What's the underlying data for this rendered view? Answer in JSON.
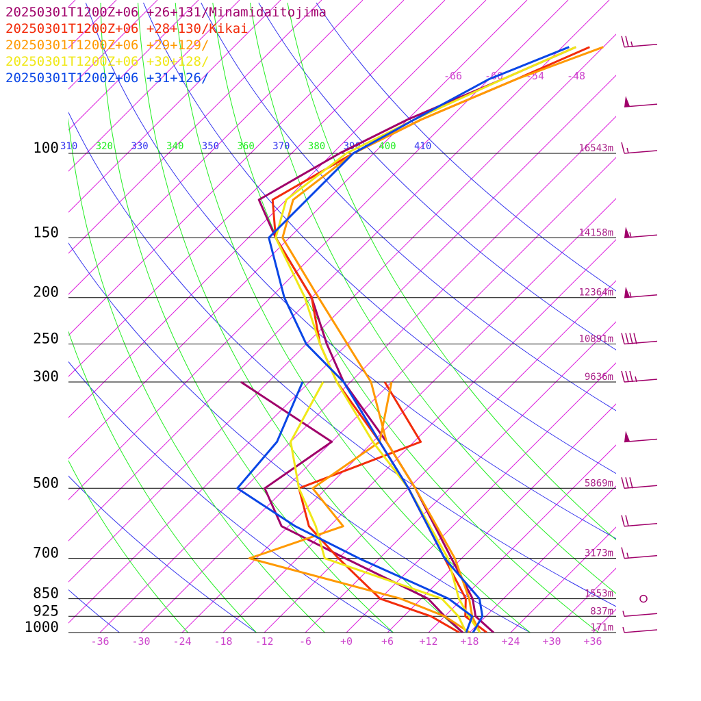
{
  "chart_data": {
    "type": "skew-t sounding",
    "legend": [
      {
        "label": "20250301T1200Z+06 +26+131/Minamidaitojima",
        "color": "#a0006a"
      },
      {
        "label": "20250301T1200Z+06 +28+130/Kikai",
        "color": "#f22c0b"
      },
      {
        "label": "20250301T1200Z+06 +29+129/",
        "color": "#ff9900"
      },
      {
        "label": "20250301T1200Z+06 +30+128/",
        "color": "#f0e818"
      },
      {
        "label": "20250301T1200Z+06 +31+126/",
        "color": "#0a46e6"
      }
    ],
    "pressure_levels": [
      {
        "label": "100",
        "p": 100,
        "height": "16543m"
      },
      {
        "label": "150",
        "p": 150,
        "height": "14158m"
      },
      {
        "label": "200",
        "p": 200,
        "height": "12364m"
      },
      {
        "label": "250",
        "p": 250,
        "height": "10891m"
      },
      {
        "label": "300",
        "p": 300,
        "height": "9636m"
      },
      {
        "label": "500",
        "p": 500,
        "height": "5869m"
      },
      {
        "label": "700",
        "p": 700,
        "height": "3173m"
      },
      {
        "label": "850",
        "p": 850,
        "height": "1553m"
      },
      {
        "label": "925",
        "p": 925,
        "height": "837m"
      },
      {
        "label": "1000",
        "p": 1000,
        "height": "171m"
      }
    ],
    "temperature_ticks": [
      "-36",
      "-30",
      "-24",
      "-18",
      "-12",
      "-6",
      "+0",
      "+6",
      "+12",
      "+18",
      "+24",
      "+30",
      "+36"
    ],
    "temperature_values": [
      -36,
      -30,
      -24,
      -18,
      -12,
      -6,
      0,
      6,
      12,
      18,
      24,
      30,
      36
    ],
    "theta_labels": [
      "310",
      "320",
      "330",
      "340",
      "350",
      "360",
      "370",
      "380",
      "390",
      "400",
      "410"
    ],
    "mixing_ratio_labels": [
      "-66",
      "-60",
      "-54",
      "-48"
    ],
    "series": [
      {
        "name": "20250301T1200Z+06 +26+131/Minamidaitojima",
        "color": "#a0006a",
        "temperature": [
          [
            1000,
            21.5
          ],
          [
            925,
            16.5
          ],
          [
            850,
            13.5
          ],
          [
            700,
            4.5
          ],
          [
            500,
            -11
          ],
          [
            400,
            -22
          ],
          [
            300,
            -37
          ],
          [
            250,
            -45
          ],
          [
            200,
            -54
          ],
          [
            150,
            -68
          ],
          [
            125,
            -76
          ],
          [
            100,
            -71
          ],
          [
            85,
            -66
          ],
          [
            70,
            -58
          ],
          [
            60,
            -52
          ]
        ],
        "dewpoint": [
          [
            1000,
            17
          ],
          [
            925,
            12
          ],
          [
            850,
            7
          ],
          [
            700,
            -11
          ],
          [
            600,
            -25
          ],
          [
            500,
            -33
          ],
          [
            400,
            -30
          ],
          [
            300,
            -52
          ]
        ]
      },
      {
        "name": "20250301T1200Z+06 +28+130/Kikai",
        "color": "#f22c0b",
        "temperature": [
          [
            1000,
            20.5
          ],
          [
            925,
            15
          ],
          [
            850,
            12.5
          ],
          [
            700,
            3.5
          ],
          [
            500,
            -12
          ],
          [
            400,
            -23
          ],
          [
            300,
            -38
          ],
          [
            250,
            -46
          ],
          [
            200,
            -54
          ],
          [
            150,
            -68
          ],
          [
            125,
            -74
          ],
          [
            100,
            -69
          ],
          [
            85,
            -64
          ],
          [
            70,
            -56
          ],
          [
            60,
            -50
          ]
        ],
        "dewpoint": [
          [
            1000,
            16.5
          ],
          [
            925,
            10
          ],
          [
            850,
            0
          ],
          [
            700,
            -12
          ],
          [
            600,
            -21
          ],
          [
            500,
            -28
          ],
          [
            400,
            -17
          ],
          [
            300,
            -31
          ]
        ]
      },
      {
        "name": "20250301T1200Z+06 +29+129/",
        "color": "#ff9900",
        "temperature": [
          [
            1000,
            19.5
          ],
          [
            925,
            16
          ],
          [
            850,
            13
          ],
          [
            700,
            5
          ],
          [
            500,
            -11
          ],
          [
            400,
            -22
          ],
          [
            300,
            -33
          ],
          [
            250,
            -42
          ],
          [
            200,
            -53
          ],
          [
            150,
            -67
          ],
          [
            125,
            -71
          ],
          [
            100,
            -69
          ],
          [
            85,
            -64
          ],
          [
            70,
            -56
          ],
          [
            60,
            -48
          ]
        ],
        "dewpoint": [
          [
            1000,
            18
          ],
          [
            925,
            12
          ],
          [
            850,
            3
          ],
          [
            700,
            -25
          ],
          [
            600,
            -16
          ],
          [
            500,
            -26
          ],
          [
            400,
            -23
          ],
          [
            300,
            -30
          ]
        ]
      },
      {
        "name": "20250301T1200Z+06 +30+128/",
        "color": "#f0e818",
        "temperature": [
          [
            1000,
            19.5
          ],
          [
            925,
            15.5
          ],
          [
            850,
            11.5
          ],
          [
            700,
            4
          ],
          [
            500,
            -12
          ],
          [
            400,
            -24
          ],
          [
            300,
            -38
          ],
          [
            250,
            -46
          ],
          [
            200,
            -55
          ],
          [
            150,
            -68
          ],
          [
            125,
            -72
          ],
          [
            100,
            -70
          ],
          [
            85,
            -65
          ],
          [
            70,
            -58
          ],
          [
            60,
            -52
          ]
        ],
        "dewpoint": [
          [
            1000,
            17.5
          ],
          [
            925,
            14
          ],
          [
            850,
            9
          ],
          [
            700,
            -14
          ],
          [
            600,
            -20
          ],
          [
            500,
            -28
          ],
          [
            400,
            -36
          ],
          [
            300,
            -40
          ]
        ]
      },
      {
        "name": "20250301T1200Z+06 +31+126/",
        "color": "#0a46e6",
        "temperature": [
          [
            1000,
            18.5
          ],
          [
            925,
            17.5
          ],
          [
            850,
            14.5
          ],
          [
            700,
            3.5
          ],
          [
            500,
            -12
          ],
          [
            400,
            -23
          ],
          [
            300,
            -37
          ],
          [
            250,
            -48
          ],
          [
            200,
            -58
          ],
          [
            150,
            -69
          ],
          [
            100,
            -69
          ],
          [
            85,
            -65
          ],
          [
            70,
            -60
          ],
          [
            60,
            -53
          ]
        ],
        "dewpoint": [
          [
            1000,
            17.5
          ],
          [
            925,
            16
          ],
          [
            850,
            10
          ],
          [
            700,
            -9
          ],
          [
            600,
            -23
          ],
          [
            500,
            -37
          ],
          [
            400,
            -38
          ],
          [
            300,
            -43
          ]
        ]
      }
    ],
    "wind_barbs": [
      {
        "p": 60,
        "speed_kt": 25
      },
      {
        "p": 80,
        "speed_kt": 50
      },
      {
        "p": 100,
        "speed_kt": 15
      },
      {
        "p": 150,
        "speed_kt": 55
      },
      {
        "p": 200,
        "speed_kt": 55
      },
      {
        "p": 250,
        "speed_kt": 40
      },
      {
        "p": 300,
        "speed_kt": 35
      },
      {
        "p": 400,
        "speed_kt": 50
      },
      {
        "p": 500,
        "speed_kt": 30
      },
      {
        "p": 600,
        "speed_kt": 20
      },
      {
        "p": 700,
        "speed_kt": 15
      },
      {
        "p": 850,
        "speed_kt": 0
      },
      {
        "p": 925,
        "speed_kt": 5
      },
      {
        "p": 1000,
        "speed_kt": 5
      }
    ]
  },
  "colors": {
    "isotherm": "#dd22dd",
    "dry_adiabat": "#3333ee",
    "moist_adiabat": "#22ee22",
    "isobar": "#000000",
    "height_label": "#aa2288",
    "tick_label": "#cc44cc",
    "barb": "#a0006a"
  }
}
